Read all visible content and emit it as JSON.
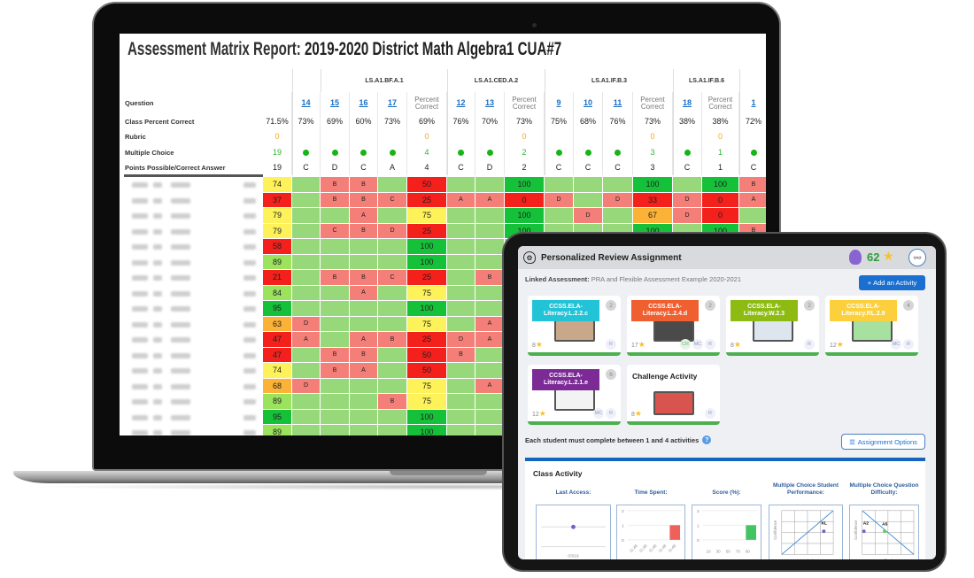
{
  "laptop": {
    "report_title_bold": "Assessment Matrix Report:",
    "report_title_rest": " 2019-2020 District Math Algebra1 CUA#7",
    "standards": [
      "LS.A1.BF.A.1",
      "LS.A1.CED.A.2",
      "LS.A1.IF.B.3",
      "LS.A1.IF.B.6"
    ],
    "row_labels": {
      "question": "Question",
      "class_percent": "Class Percent Correct",
      "rubric": "Rubric",
      "multiple_choice": "Multiple Choice",
      "points": "Points Possible/Correct Answer"
    },
    "summary": {
      "class_percent": "71.5%",
      "rubric": "0",
      "multiple_choice": "19",
      "points": "19"
    },
    "columns": [
      {
        "type": "question",
        "label": "14",
        "class_percent": "73%",
        "points": "C"
      },
      {
        "type": "question",
        "label": "15",
        "class_percent": "69%",
        "points": "D"
      },
      {
        "type": "question",
        "label": "16",
        "class_percent": "60%",
        "points": "C"
      },
      {
        "type": "question",
        "label": "17",
        "class_percent": "73%",
        "points": "A"
      },
      {
        "type": "percent",
        "label": "Percent Correct",
        "class_percent": "69%",
        "rubric": "0",
        "multiple_choice": "4",
        "points": "4"
      },
      {
        "type": "question",
        "label": "12",
        "class_percent": "76%",
        "points": "C"
      },
      {
        "type": "question",
        "label": "13",
        "class_percent": "70%",
        "points": "D"
      },
      {
        "type": "percent",
        "label": "Percent Correct",
        "class_percent": "73%",
        "rubric": "0",
        "multiple_choice": "2",
        "points": "2"
      },
      {
        "type": "question",
        "label": "9",
        "class_percent": "75%",
        "points": "C"
      },
      {
        "type": "question",
        "label": "10",
        "class_percent": "68%",
        "points": "C"
      },
      {
        "type": "question",
        "label": "11",
        "class_percent": "76%",
        "points": "C"
      },
      {
        "type": "percent",
        "label": "Percent Correct",
        "class_percent": "73%",
        "rubric": "0",
        "multiple_choice": "3",
        "points": "3"
      },
      {
        "type": "question",
        "label": "18",
        "class_percent": "38%",
        "points": "C"
      },
      {
        "type": "percent",
        "label": "Percent Correct",
        "class_percent": "38%",
        "rubric": "0",
        "multiple_choice": "1",
        "points": "1"
      },
      {
        "type": "question",
        "label": "1",
        "class_percent": "72%",
        "points": "C"
      }
    ],
    "students": [
      {
        "score": 74,
        "cells": [
          "",
          "B",
          "B",
          "",
          "50",
          "",
          "",
          "100",
          "",
          "",
          "",
          "100",
          "",
          "100",
          "B"
        ]
      },
      {
        "score": 37,
        "cells": [
          "",
          "B",
          "B",
          "C",
          "25",
          "A",
          "A",
          "0",
          "D",
          "",
          "D",
          "33",
          "D",
          "0",
          "A"
        ]
      },
      {
        "score": 79,
        "cells": [
          "",
          "",
          "A",
          "",
          "75",
          "",
          "",
          "100",
          "",
          "D",
          "",
          "67",
          "D",
          "0",
          ""
        ]
      },
      {
        "score": 79,
        "cells": [
          "",
          "C",
          "B",
          "D",
          "25",
          "",
          "",
          "100",
          "",
          "",
          "",
          "100",
          "",
          "100",
          "B"
        ]
      },
      {
        "score": 58,
        "cells": [
          "",
          "",
          "",
          "",
          "100",
          "",
          ""
        ]
      },
      {
        "score": 89,
        "cells": [
          "",
          "",
          "",
          "",
          "100",
          "",
          ""
        ]
      },
      {
        "score": 21,
        "cells": [
          "",
          "B",
          "B",
          "C",
          "25",
          "",
          "B"
        ]
      },
      {
        "score": 84,
        "cells": [
          "",
          "",
          "A",
          "",
          "75",
          "",
          ""
        ]
      },
      {
        "score": 95,
        "cells": [
          "",
          "",
          "",
          "",
          "100",
          "",
          ""
        ]
      },
      {
        "score": 63,
        "cells": [
          "D",
          "",
          "",
          "",
          "75",
          "",
          "A"
        ]
      },
      {
        "score": 47,
        "cells": [
          "A",
          "",
          "A",
          "B",
          "25",
          "D",
          "A"
        ]
      },
      {
        "score": 47,
        "cells": [
          "",
          "B",
          "B",
          "",
          "50",
          "B",
          ""
        ]
      },
      {
        "score": 74,
        "cells": [
          "",
          "B",
          "A",
          "",
          "50",
          "",
          ""
        ]
      },
      {
        "score": 68,
        "cells": [
          "D",
          "",
          "",
          "",
          "75",
          "",
          "A"
        ]
      },
      {
        "score": 89,
        "cells": [
          "",
          "",
          "",
          "B",
          "75",
          "",
          ""
        ]
      },
      {
        "score": 95,
        "cells": [
          "",
          "",
          "",
          "",
          "100",
          "",
          ""
        ]
      },
      {
        "score": 89,
        "cells": [
          "",
          "",
          "",
          "",
          "100",
          "",
          ""
        ]
      }
    ]
  },
  "tablet": {
    "title": "Personalized Review Assignment",
    "points": "62",
    "linked_label": "Linked Assessment:",
    "linked_value": " PRA and Flexible Assessment Example 2020-2021",
    "add_button": "Add an Activity",
    "cards": [
      {
        "label": "CCSS.ELA-Literacy.L.2.2.c",
        "color": "#22c3d6",
        "badge": "2",
        "stars": "8",
        "tags": [
          "R"
        ],
        "thumb": "#c9a88a"
      },
      {
        "label": "CCSS.ELA-Literacy.L.2.4.d",
        "color": "#ef5f2f",
        "badge": "2",
        "stars": "17",
        "tags": [
          "CR",
          "MC",
          "R"
        ],
        "thumb": "#4a4a4a"
      },
      {
        "label": "CCSS.ELA-Literacy.W.2.3",
        "color": "#8dbb12",
        "badge": "2",
        "stars": "8",
        "tags": [
          "R"
        ],
        "thumb": "#dde6ee"
      },
      {
        "label": "CCSS.ELA-Literacy.RL.2.9",
        "color": "#fbd03c",
        "badge": "4",
        "stars": "12",
        "tags": [
          "MC",
          "R"
        ],
        "thumb": "#a6e1a0"
      },
      {
        "label": "CCSS.ELA-Literacy.L.2.1.e",
        "color": "#7b2a96",
        "badge": "6",
        "stars": "12",
        "tags": [
          "MC",
          "R"
        ],
        "thumb": "#f3f3f3"
      }
    ],
    "challenge": {
      "title": "Challenge Activity",
      "stars": "8",
      "tags": [
        "R"
      ],
      "thumb": "#d9534f"
    },
    "requirement": "Each student must complete between 1 and 4 activities",
    "options_button": "Assignment Options",
    "class_activity": {
      "title": "Class Activity",
      "charts": [
        {
          "title": "Last Access:",
          "xlabels": [
            "03/19"
          ]
        },
        {
          "title": "Time Spent:",
          "yticks": [
            "2",
            "1",
            "0"
          ],
          "xlabels": [
            "11:48",
            "11:48",
            "11:48",
            "11:48",
            "11:48"
          ],
          "bar_value": 1,
          "bar_color": "#f0605a"
        },
        {
          "title": "Score (%):",
          "yticks": [
            "2",
            "1",
            "0"
          ],
          "xlabels": [
            "10",
            "30",
            "50",
            "70",
            "90"
          ],
          "bar_value": 1,
          "bar_color": "#43c463"
        },
        {
          "title": "Multiple Choice Student Performance:",
          "ylabel": "Confidence",
          "xlabel": "Knowledge",
          "points": [
            "KL"
          ]
        },
        {
          "title": "Multiple Choice Question Difficulty:",
          "ylabel": "Confidence",
          "xlabel": "Difficulty",
          "points": [
            "A2",
            "A5"
          ]
        }
      ]
    }
  }
}
